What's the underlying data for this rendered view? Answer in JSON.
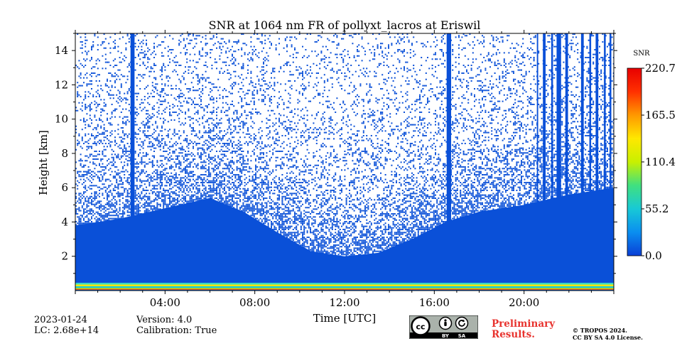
{
  "chart_data": {
    "type": "heatmap",
    "title": "SNR at 1064 nm FR of pollyxt_lacros at Eriswil",
    "xlabel": "Time [UTC]",
    "ylabel": "Height [km]",
    "xlim": [
      0,
      24
    ],
    "ylim": [
      0,
      15
    ],
    "x_ticks": [
      {
        "value": 4,
        "label": "04:00"
      },
      {
        "value": 8,
        "label": "08:00"
      },
      {
        "value": 12,
        "label": "12:00"
      },
      {
        "value": 16,
        "label": "16:00"
      },
      {
        "value": 20,
        "label": "20:00"
      }
    ],
    "y_ticks": [
      {
        "value": 2,
        "label": "2"
      },
      {
        "value": 4,
        "label": "4"
      },
      {
        "value": 6,
        "label": "6"
      },
      {
        "value": 8,
        "label": "8"
      },
      {
        "value": 10,
        "label": "10"
      },
      {
        "value": 12,
        "label": "12"
      },
      {
        "value": 14,
        "label": "14"
      }
    ],
    "colorbar": {
      "label": "SNR",
      "min": 0.0,
      "max": 220.7,
      "ticks": [
        {
          "value": 0.0,
          "label": "0.0"
        },
        {
          "value": 55.2,
          "label": "55.2"
        },
        {
          "value": 110.4,
          "label": "110.4"
        },
        {
          "value": 165.5,
          "label": "165.5"
        },
        {
          "value": 220.7,
          "label": "220.7"
        }
      ],
      "colors": [
        "#0a3fd6",
        "#0a8ef0",
        "#18c9d6",
        "#40e080",
        "#c8f000",
        "#ffe800",
        "#ff9800",
        "#ff3000",
        "#e80000"
      ]
    },
    "background_color": "#0a50d8",
    "solid_layer_top_km": 3.0,
    "noise_profile": [
      {
        "time": 0.0,
        "low_km": 3.8
      },
      {
        "time": 2.0,
        "low_km": 4.2
      },
      {
        "time": 4.0,
        "low_km": 4.8
      },
      {
        "time": 6.0,
        "low_km": 5.4
      },
      {
        "time": 7.5,
        "low_km": 4.6
      },
      {
        "time": 9.0,
        "low_km": 3.4
      },
      {
        "time": 10.5,
        "low_km": 2.3
      },
      {
        "time": 12.0,
        "low_km": 2.0
      },
      {
        "time": 13.5,
        "low_km": 2.2
      },
      {
        "time": 15.0,
        "low_km": 3.0
      },
      {
        "time": 16.5,
        "low_km": 4.0
      },
      {
        "time": 18.0,
        "low_km": 4.6
      },
      {
        "time": 20.0,
        "low_km": 5.0
      },
      {
        "time": 22.0,
        "low_km": 5.6
      },
      {
        "time": 24.0,
        "low_km": 6.0
      }
    ],
    "rain_columns": [
      {
        "time": 2.55,
        "width_h": 0.18
      },
      {
        "time": 16.65,
        "width_h": 0.2
      },
      {
        "time": 20.6,
        "width_h": 0.06
      },
      {
        "time": 20.9,
        "width_h": 0.12
      },
      {
        "time": 21.25,
        "width_h": 0.08
      },
      {
        "time": 21.55,
        "width_h": 0.2
      },
      {
        "time": 21.9,
        "width_h": 0.12
      },
      {
        "time": 22.6,
        "width_h": 0.12
      },
      {
        "time": 22.95,
        "width_h": 0.08
      },
      {
        "time": 23.25,
        "width_h": 0.12
      },
      {
        "time": 23.6,
        "width_h": 0.08
      },
      {
        "time": 23.85,
        "width_h": 0.08
      }
    ],
    "surface_band": [
      {
        "height_km": 0.45,
        "color": "#40e0c0"
      },
      {
        "height_km": 0.35,
        "color": "#ffe800"
      },
      {
        "height_km": 0.25,
        "color": "#18c9d6"
      },
      {
        "height_km": 0.15,
        "color": "#c8f000"
      },
      {
        "height_km": 0.07,
        "color": "#18c9d6"
      }
    ]
  },
  "meta": {
    "date": "2023-01-24",
    "lc": "LC: 2.68e+14",
    "version": "Version: 4.0",
    "calibration": "Calibration: True"
  },
  "license": {
    "badge_cc": "cc",
    "badge_by": "BY",
    "badge_sa": "SA",
    "preliminary_line1": "Preliminary",
    "preliminary_line2": "Results.",
    "copyright_line1": "© TROPOS 2024.",
    "copyright_line2": "CC BY SA 4.0 License."
  }
}
